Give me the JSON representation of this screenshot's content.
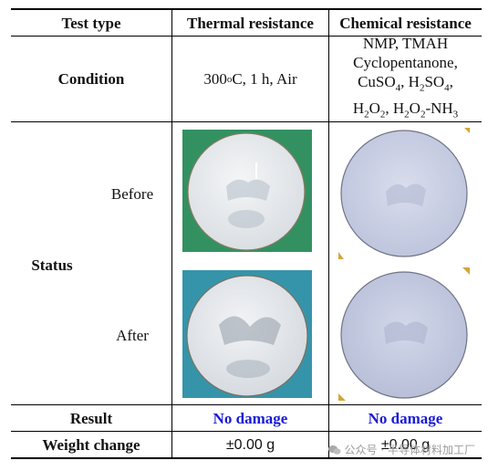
{
  "header": {
    "col1": "Test type",
    "col2": "Thermal resistance",
    "col3": "Chemical resistance"
  },
  "condition": {
    "label": "Condition",
    "thermal": {
      "value": "300",
      "sup": "o",
      "rest": "C, 1 h, Air"
    },
    "chemical_lines": [
      "NMP, TMAH",
      "Cyclopentanone,"
    ]
  },
  "status": {
    "label": "Status",
    "before": "Before",
    "after": "After"
  },
  "result": {
    "label": "Result",
    "thermal": "No damage",
    "chemical": "No damage"
  },
  "weight_change": {
    "label": "Weight change",
    "thermal": "±0.00 g",
    "chemical": "±0.00 g"
  },
  "watermark": {
    "text": "公众号 · 半导体材料加工厂"
  },
  "colors": {
    "result_text": "#1a1ad6",
    "thermal_before_bg": "#2f8a5c",
    "thermal_after_bg": "#2b8aa3",
    "wafer_white": "#eef1f4",
    "wafer_blue": "#c9cfe2"
  }
}
